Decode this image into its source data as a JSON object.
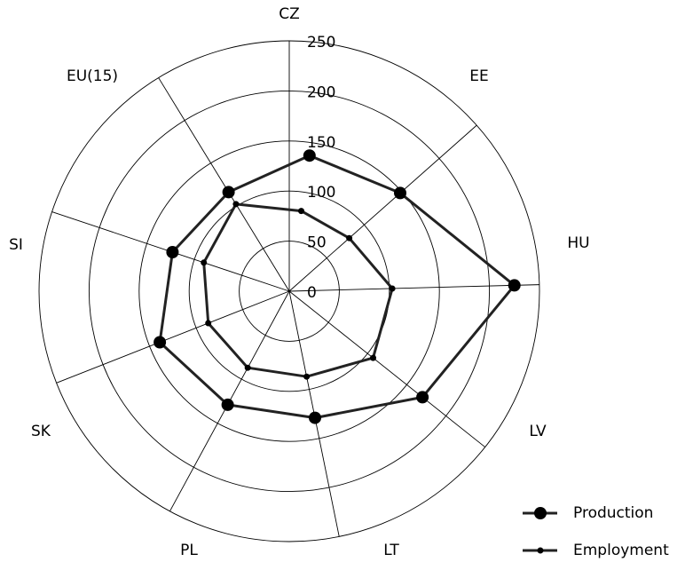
{
  "chart_data": {
    "type": "radar",
    "title": "",
    "axes": [
      "CZ",
      "EE",
      "HU",
      "LV",
      "LT",
      "PL",
      "SK",
      "SI",
      "EU(15)"
    ],
    "rlim": [
      0,
      250
    ],
    "r_ticks": [
      0,
      50,
      100,
      150,
      200,
      250
    ],
    "grid": true,
    "legend_position": "bottom-right",
    "series": [
      {
        "name": "Production",
        "marker": "circle-large",
        "values": [
          137,
          148,
          225,
          170,
          129,
          129,
          139,
          123,
          116
        ]
      },
      {
        "name": "Employment",
        "marker": "circle-small",
        "values": [
          81,
          80,
          103,
          107,
          87,
          87,
          87,
          90,
          102
        ]
      }
    ]
  }
}
